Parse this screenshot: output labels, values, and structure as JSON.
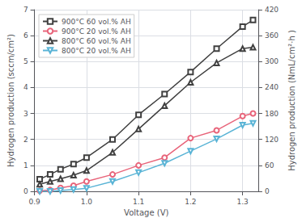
{
  "chart_data": {
    "type": "line",
    "xlabel": "Voltage (V)",
    "ylabel": "Hydrogen production (sccm/cm²)",
    "y2label": "Hydrogen production (NmL/cm²·h )",
    "x": [
      0.91,
      0.93,
      0.95,
      0.975,
      1.0,
      1.05,
      1.1,
      1.15,
      1.2,
      1.25,
      1.3,
      1.32
    ],
    "series": [
      {
        "name": "900°C 60 vol.% AH",
        "color": "#404040",
        "marker": "square",
        "values": [
          0.47,
          0.65,
          0.85,
          1.05,
          1.3,
          2.0,
          2.95,
          3.75,
          4.6,
          5.5,
          6.35,
          6.6
        ]
      },
      {
        "name": "900°C 20 vol.% AH",
        "color": "#e8647a",
        "marker": "circle",
        "values": [
          0.02,
          0.05,
          0.13,
          0.22,
          0.38,
          0.65,
          1.0,
          1.3,
          2.05,
          2.35,
          2.9,
          3.0
        ]
      },
      {
        "name": "800°C 60 vol.% AH",
        "color": "#404040",
        "marker": "triangle_up",
        "values": [
          0.27,
          0.38,
          0.48,
          0.62,
          0.8,
          1.5,
          2.4,
          3.3,
          4.2,
          4.95,
          5.5,
          5.55
        ]
      },
      {
        "name": "800°C 20 vol.% AH",
        "color": "#5ab4d6",
        "marker": "triangle_down",
        "values": [
          0.0,
          0.0,
          0.03,
          0.07,
          0.12,
          0.38,
          0.72,
          1.08,
          1.55,
          2.02,
          2.55,
          2.62
        ]
      }
    ],
    "xlim": [
      0.9,
      1.33
    ],
    "xticks": [
      0.9,
      {
        "value": 1.0,
        "label": "1.0"
      },
      1.1,
      1.2,
      1.3
    ],
    "ylim": [
      0,
      7
    ],
    "yticks": [
      0,
      1,
      2,
      3,
      4,
      5,
      6,
      7
    ],
    "y2lim": [
      0,
      420
    ],
    "y2ticks": [
      0,
      60,
      120,
      180,
      240,
      300,
      360,
      420
    ],
    "grid": true,
    "legend": "upper left"
  }
}
